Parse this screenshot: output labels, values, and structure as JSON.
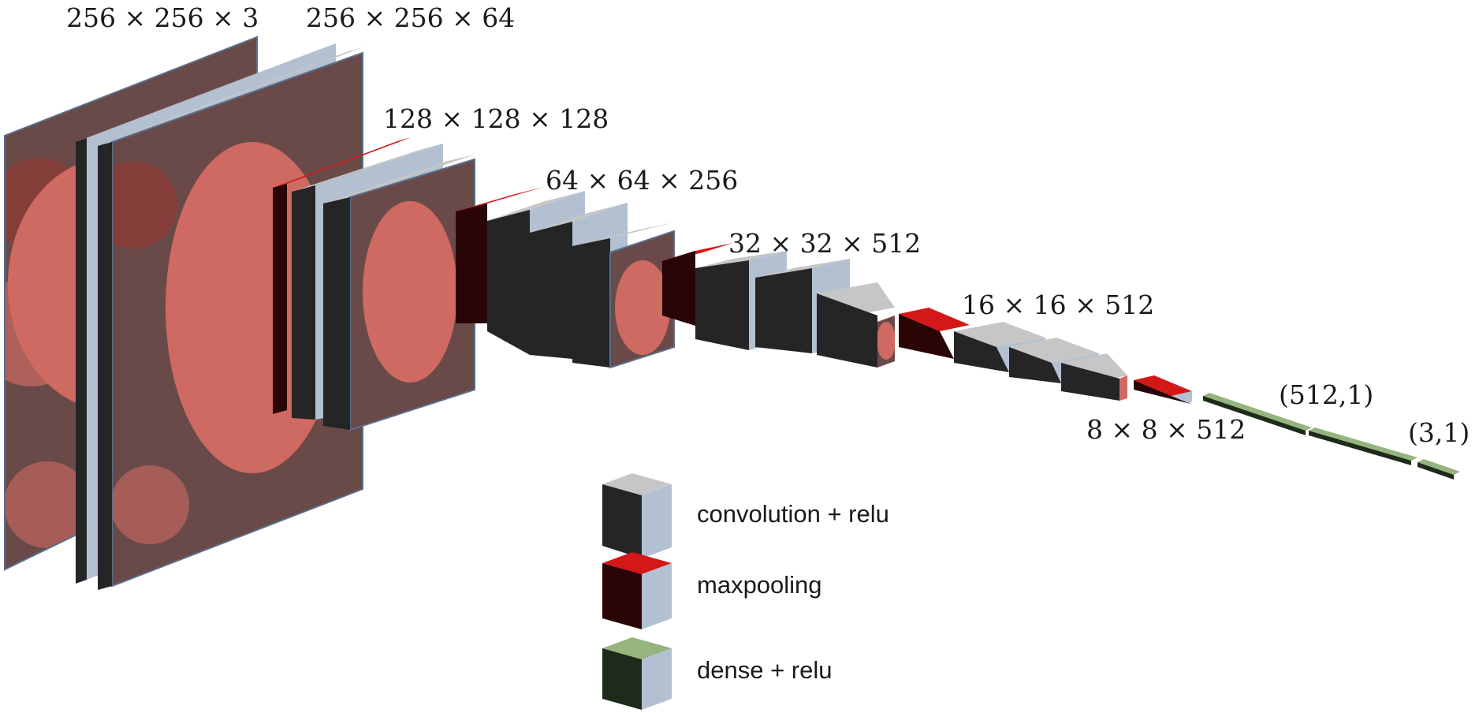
{
  "colors": {
    "conv_front": "#252525",
    "conv_top": "#c6c6c6",
    "conv_side": "#b2c0d2",
    "pool_front": "#2a0508",
    "pool_top": "#d41717",
    "dense_front": "#1e2b1a",
    "dense_top": "#96b47e",
    "edge": "#5a6e8a",
    "fruit": "#cf6a62",
    "fruit_dark": "#8c3a36",
    "background_photo": "#6a4a48"
  },
  "dimension_labels": {
    "input": "256 × 256 × 3",
    "block1": "256 × 256 × 64",
    "block2": "128 × 128 × 128",
    "block3": "64 × 64 × 256",
    "block4": "32 × 32 × 512",
    "block5": "16 × 16 × 512",
    "pool5": "8 × 8 × 512",
    "dense1": "(512,1)",
    "dense2": "(3,1)"
  },
  "legend": {
    "conv": {
      "label": "convolution + relu",
      "icon": "conv-cube-icon"
    },
    "pool": {
      "label": "maxpooling",
      "icon": "pool-cube-icon"
    },
    "dense": {
      "label": "dense + relu",
      "icon": "dense-cube-icon"
    }
  }
}
